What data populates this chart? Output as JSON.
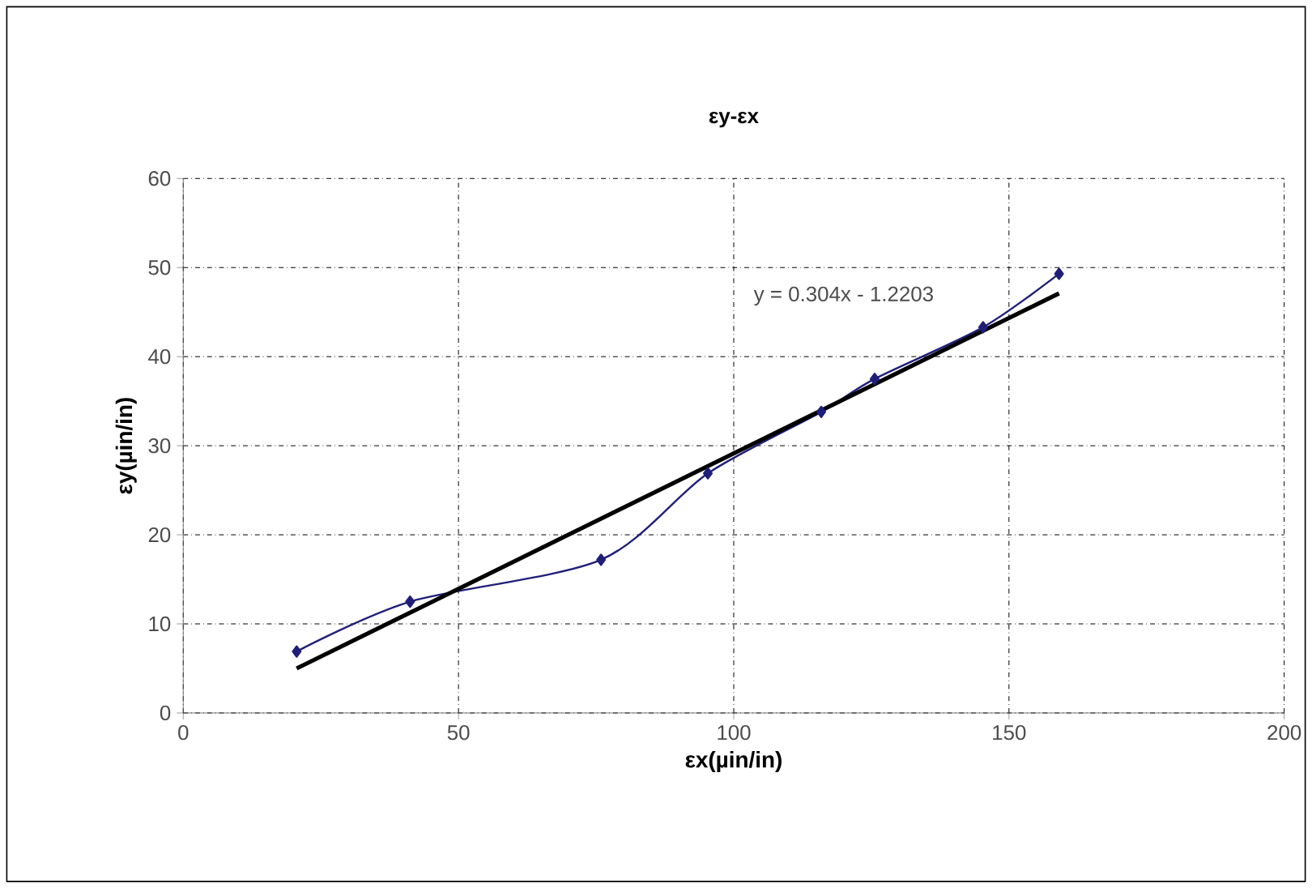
{
  "chart_data": {
    "type": "line",
    "title": "εy-εx",
    "xlabel": "εx(µin/in)",
    "ylabel": "εy(µin/in)",
    "series": [
      {
        "color": "#1f1f7a",
        "marker": "diamond",
        "x": [
          20.6,
          41.2,
          75.9,
          95.3,
          115.9,
          125.6,
          145.3,
          159.1
        ],
        "values": [
          6.9,
          12.5,
          17.2,
          26.9,
          33.8,
          37.5,
          43.3,
          49.3
        ]
      },
      {
        "color": "#000000",
        "marker": "none",
        "x": [
          20.6,
          159.1
        ],
        "values": [
          5.0,
          47.1
        ]
      }
    ],
    "annotations": [
      "y = 0.304x - 1.2203"
    ],
    "xlim": [
      0,
      200
    ],
    "xticks": [
      0,
      50,
      100,
      150,
      200
    ],
    "ylim": [
      0,
      60
    ],
    "yticks": [
      0,
      10,
      20,
      30,
      40,
      50,
      60
    ],
    "grid": true
  }
}
